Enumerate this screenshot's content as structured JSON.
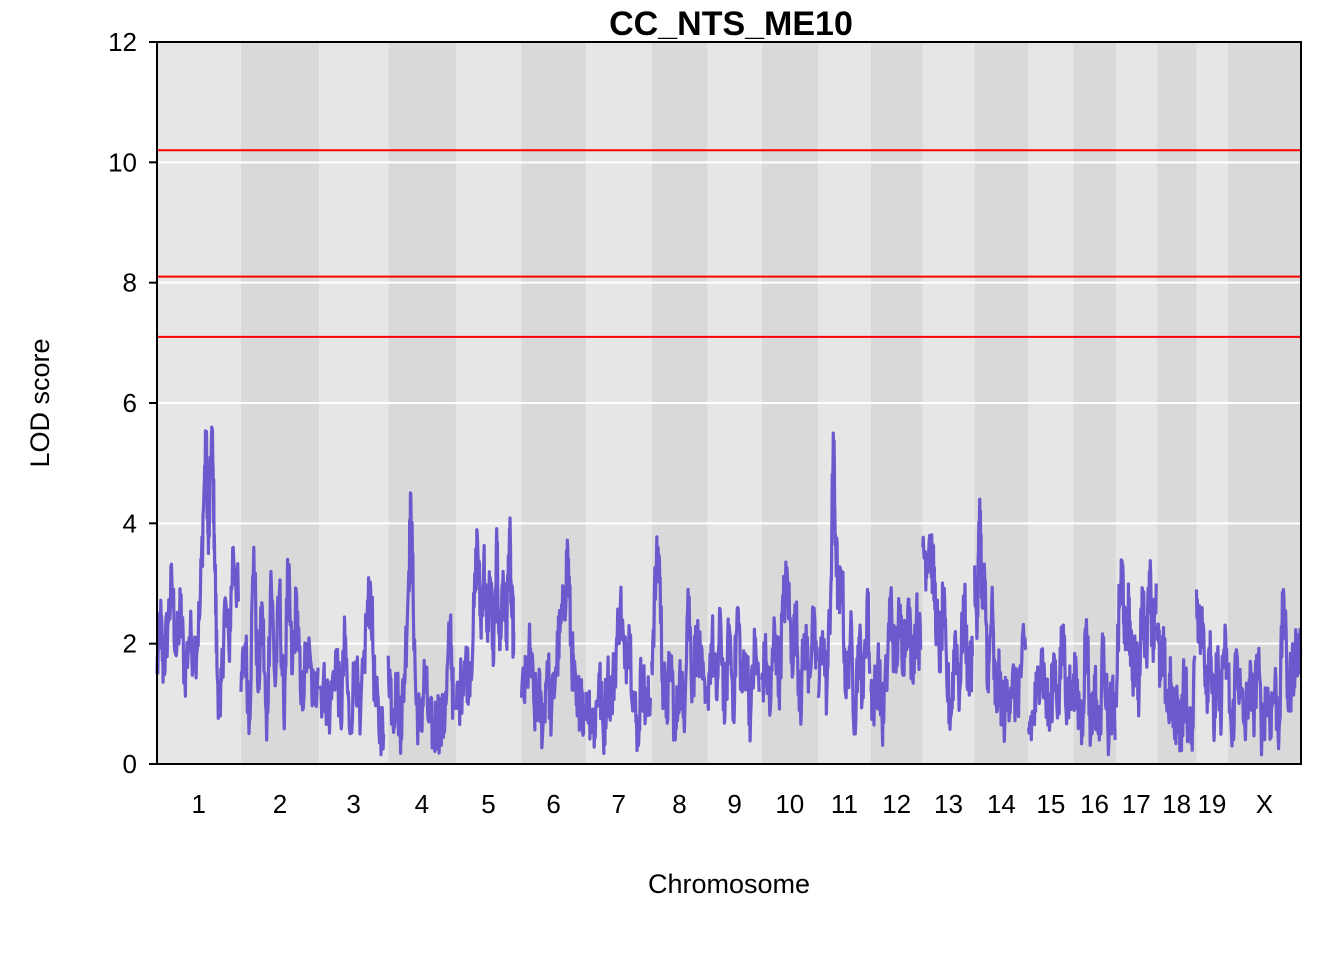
{
  "chart_data": {
    "type": "line",
    "title": "CC_NTS_ME10",
    "xlabel": "Chromosome",
    "ylabel": "LOD score",
    "ylim": [
      0,
      12
    ],
    "yticks": [
      0,
      2,
      4,
      6,
      8,
      10,
      12
    ],
    "grid": true,
    "legend": "none",
    "series_color": "#6a5acd",
    "threshold_color": "#ff0000",
    "thresholds": [
      10.2,
      8.1,
      7.1
    ],
    "chromosomes": [
      {
        "label": "1",
        "len": 195
      },
      {
        "label": "2",
        "len": 182
      },
      {
        "label": "3",
        "len": 160
      },
      {
        "label": "4",
        "len": 157
      },
      {
        "label": "5",
        "len": 152
      },
      {
        "label": "6",
        "len": 150
      },
      {
        "label": "7",
        "len": 152
      },
      {
        "label": "8",
        "len": 130
      },
      {
        "label": "9",
        "len": 125
      },
      {
        "label": "10",
        "len": 131
      },
      {
        "label": "11",
        "len": 122
      },
      {
        "label": "12",
        "len": 120
      },
      {
        "label": "13",
        "len": 120
      },
      {
        "label": "14",
        "len": 125
      },
      {
        "label": "15",
        "len": 104
      },
      {
        "label": "16",
        "len": 98
      },
      {
        "label": "17",
        "len": 95
      },
      {
        "label": "18",
        "len": 91
      },
      {
        "label": "19",
        "len": 72
      },
      {
        "label": "X",
        "len": 171
      }
    ],
    "lod_profile": [
      [
        [
          0,
          1.5
        ],
        [
          8,
          2.4
        ],
        [
          15,
          1.6
        ],
        [
          25,
          2.3
        ],
        [
          35,
          3.0
        ],
        [
          45,
          1.8
        ],
        [
          55,
          2.6
        ],
        [
          65,
          1.5
        ],
        [
          75,
          2.1
        ],
        [
          90,
          1.9
        ],
        [
          100,
          2.5
        ],
        [
          110,
          4.6
        ],
        [
          115,
          5.3
        ],
        [
          120,
          3.5
        ],
        [
          128,
          5.6
        ],
        [
          134,
          3.8
        ],
        [
          140,
          1.6
        ],
        [
          148,
          0.8
        ],
        [
          158,
          2.7
        ],
        [
          168,
          1.9
        ],
        [
          178,
          3.6
        ],
        [
          190,
          2.7
        ]
      ],
      [
        [
          0,
          1.2
        ],
        [
          10,
          2.0
        ],
        [
          20,
          0.8
        ],
        [
          30,
          3.6
        ],
        [
          40,
          1.2
        ],
        [
          50,
          2.6
        ],
        [
          60,
          0.4
        ],
        [
          70,
          3.2
        ],
        [
          80,
          1.3
        ],
        [
          90,
          2.9
        ],
        [
          100,
          0.8
        ],
        [
          110,
          3.2
        ],
        [
          120,
          1.5
        ],
        [
          130,
          2.8
        ],
        [
          140,
          1.0
        ],
        [
          155,
          1.9
        ],
        [
          170,
          1.1
        ],
        [
          180,
          1.6
        ]
      ],
      [
        [
          0,
          1.3
        ],
        [
          15,
          1.2
        ],
        [
          25,
          0.9
        ],
        [
          40,
          1.9
        ],
        [
          50,
          0.7
        ],
        [
          60,
          2.1
        ],
        [
          70,
          0.6
        ],
        [
          85,
          1.7
        ],
        [
          95,
          0.5
        ],
        [
          110,
          2.4
        ],
        [
          120,
          2.9
        ],
        [
          130,
          1.1
        ],
        [
          142,
          0.6
        ],
        [
          150,
          0.5
        ]
      ],
      [
        [
          0,
          1.8
        ],
        [
          10,
          0.9
        ],
        [
          20,
          1.2
        ],
        [
          30,
          0.6
        ],
        [
          40,
          1.8
        ],
        [
          48,
          3.2
        ],
        [
          53,
          4.3
        ],
        [
          58,
          2.8
        ],
        [
          65,
          1.0
        ],
        [
          75,
          0.6
        ],
        [
          85,
          1.5
        ],
        [
          95,
          0.7
        ],
        [
          105,
          0.5
        ],
        [
          115,
          0.8
        ],
        [
          125,
          0.6
        ],
        [
          135,
          1.0
        ],
        [
          145,
          2.4
        ],
        [
          152,
          0.9
        ]
      ],
      [
        [
          0,
          0.9
        ],
        [
          10,
          1.2
        ],
        [
          20,
          1.7
        ],
        [
          30,
          1.5
        ],
        [
          40,
          2.1
        ],
        [
          50,
          3.8
        ],
        [
          58,
          2.3
        ],
        [
          65,
          3.4
        ],
        [
          72,
          2.2
        ],
        [
          80,
          3.1
        ],
        [
          88,
          1.7
        ],
        [
          96,
          3.6
        ],
        [
          102,
          1.9
        ],
        [
          110,
          3.2
        ],
        [
          118,
          2.1
        ],
        [
          125,
          3.9
        ],
        [
          130,
          2.5
        ],
        [
          135,
          2.2
        ]
      ],
      [
        [
          0,
          1.1
        ],
        [
          10,
          1.3
        ],
        [
          20,
          1.9
        ],
        [
          30,
          0.9
        ],
        [
          40,
          1.2
        ],
        [
          50,
          0.6
        ],
        [
          60,
          1.7
        ],
        [
          70,
          0.8
        ],
        [
          80,
          1.6
        ],
        [
          90,
          2.2
        ],
        [
          100,
          2.6
        ],
        [
          108,
          3.6
        ],
        [
          115,
          2.1
        ],
        [
          122,
          1.4
        ],
        [
          130,
          0.8
        ],
        [
          140,
          1.4
        ],
        [
          145,
          0.5
        ]
      ],
      [
        [
          0,
          1.2
        ],
        [
          10,
          0.9
        ],
        [
          20,
          0.6
        ],
        [
          30,
          1.5
        ],
        [
          40,
          0.5
        ],
        [
          50,
          1.4
        ],
        [
          60,
          1.1
        ],
        [
          70,
          1.9
        ],
        [
          80,
          2.7
        ],
        [
          90,
          1.6
        ],
        [
          100,
          2.3
        ],
        [
          110,
          1.2
        ],
        [
          120,
          0.4
        ],
        [
          130,
          1.6
        ],
        [
          140,
          0.8
        ],
        [
          150,
          1.1
        ]
      ],
      [
        [
          0,
          1.7
        ],
        [
          10,
          3.2
        ],
        [
          18,
          3.4
        ],
        [
          25,
          1.5
        ],
        [
          35,
          0.9
        ],
        [
          45,
          1.8
        ],
        [
          55,
          0.4
        ],
        [
          65,
          1.5
        ],
        [
          75,
          0.8
        ],
        [
          85,
          2.9
        ],
        [
          95,
          1.3
        ],
        [
          105,
          2.1
        ],
        [
          115,
          1.5
        ],
        [
          125,
          1.0
        ]
      ],
      [
        [
          0,
          1.3
        ],
        [
          10,
          2.1
        ],
        [
          20,
          1.1
        ],
        [
          30,
          2.4
        ],
        [
          40,
          0.8
        ],
        [
          50,
          2.3
        ],
        [
          60,
          1.0
        ],
        [
          70,
          2.6
        ],
        [
          80,
          1.2
        ],
        [
          90,
          1.8
        ],
        [
          100,
          0.8
        ],
        [
          110,
          2.0
        ],
        [
          120,
          1.2
        ]
      ],
      [
        [
          0,
          1.4
        ],
        [
          10,
          1.7
        ],
        [
          20,
          0.9
        ],
        [
          30,
          2.3
        ],
        [
          40,
          1.3
        ],
        [
          50,
          2.6
        ],
        [
          60,
          3.1
        ],
        [
          70,
          1.8
        ],
        [
          80,
          2.4
        ],
        [
          90,
          1.0
        ],
        [
          100,
          2.1
        ],
        [
          110,
          1.6
        ],
        [
          120,
          2.2
        ],
        [
          128,
          1.7
        ]
      ],
      [
        [
          0,
          1.1
        ],
        [
          10,
          2.2
        ],
        [
          20,
          1.2
        ],
        [
          30,
          3.1
        ],
        [
          35,
          5.5
        ],
        [
          40,
          3.8
        ],
        [
          48,
          2.6
        ],
        [
          55,
          3.2
        ],
        [
          65,
          1.1
        ],
        [
          75,
          2.2
        ],
        [
          85,
          0.8
        ],
        [
          95,
          2.1
        ],
        [
          105,
          1.1
        ],
        [
          115,
          2.9
        ],
        [
          120,
          1.5
        ]
      ],
      [
        [
          0,
          1.2
        ],
        [
          8,
          1.1
        ],
        [
          16,
          1.7
        ],
        [
          26,
          0.7
        ],
        [
          36,
          1.4
        ],
        [
          46,
          2.8
        ],
        [
          56,
          1.6
        ],
        [
          66,
          2.4
        ],
        [
          76,
          1.9
        ],
        [
          86,
          2.6
        ],
        [
          96,
          1.7
        ],
        [
          106,
          2.4
        ],
        [
          116,
          1.9
        ]
      ],
      [
        [
          0,
          3.6
        ],
        [
          8,
          3.4
        ],
        [
          16,
          3.8
        ],
        [
          24,
          3.2
        ],
        [
          32,
          2.4
        ],
        [
          40,
          1.8
        ],
        [
          48,
          2.7
        ],
        [
          56,
          1.4
        ],
        [
          66,
          0.8
        ],
        [
          76,
          2.2
        ],
        [
          86,
          1.2
        ],
        [
          96,
          2.8
        ],
        [
          106,
          1.4
        ],
        [
          116,
          1.8
        ]
      ],
      [
        [
          0,
          3.3
        ],
        [
          6,
          2.3
        ],
        [
          12,
          4.4
        ],
        [
          18,
          2.6
        ],
        [
          24,
          3.0
        ],
        [
          32,
          1.2
        ],
        [
          40,
          2.7
        ],
        [
          48,
          1.0
        ],
        [
          58,
          1.4
        ],
        [
          68,
          0.8
        ],
        [
          78,
          1.2
        ],
        [
          88,
          1.4
        ],
        [
          98,
          1.0
        ],
        [
          110,
          1.7
        ],
        [
          120,
          1.9
        ]
      ],
      [
        [
          0,
          0.6
        ],
        [
          10,
          0.7
        ],
        [
          20,
          1.2
        ],
        [
          30,
          1.9
        ],
        [
          40,
          1.1
        ],
        [
          50,
          0.7
        ],
        [
          60,
          1.8
        ],
        [
          70,
          0.9
        ],
        [
          80,
          2.3
        ],
        [
          90,
          0.9
        ],
        [
          100,
          1.4
        ]
      ],
      [
        [
          0,
          1.5
        ],
        [
          10,
          1.0
        ],
        [
          20,
          0.7
        ],
        [
          30,
          2.4
        ],
        [
          40,
          0.5
        ],
        [
          50,
          1.3
        ],
        [
          60,
          0.4
        ],
        [
          70,
          2.1
        ],
        [
          80,
          0.6
        ],
        [
          90,
          1.1
        ],
        [
          97,
          0.4
        ]
      ],
      [
        [
          0,
          1.2
        ],
        [
          8,
          2.6
        ],
        [
          15,
          3.3
        ],
        [
          22,
          1.9
        ],
        [
          30,
          2.6
        ],
        [
          38,
          1.4
        ],
        [
          46,
          2.0
        ],
        [
          54,
          1.2
        ],
        [
          62,
          2.9
        ],
        [
          70,
          1.8
        ],
        [
          78,
          3.2
        ],
        [
          86,
          2.1
        ],
        [
          94,
          3.0
        ]
      ],
      [
        [
          0,
          2.3
        ],
        [
          8,
          1.4
        ],
        [
          16,
          1.8
        ],
        [
          24,
          0.9
        ],
        [
          32,
          1.3
        ],
        [
          40,
          0.6
        ],
        [
          48,
          1.1
        ],
        [
          56,
          0.5
        ],
        [
          64,
          1.5
        ],
        [
          72,
          0.7
        ],
        [
          80,
          0.4
        ],
        [
          88,
          1.8
        ]
      ],
      [
        [
          0,
          2.9
        ],
        [
          8,
          2.1
        ],
        [
          16,
          2.3
        ],
        [
          24,
          1.2
        ],
        [
          32,
          2.2
        ],
        [
          40,
          0.6
        ],
        [
          48,
          1.6
        ],
        [
          56,
          0.9
        ],
        [
          64,
          1.9
        ],
        [
          71,
          1.7
        ]
      ],
      [
        [
          0,
          1.6
        ],
        [
          10,
          0.3
        ],
        [
          20,
          1.9
        ],
        [
          30,
          1.1
        ],
        [
          40,
          0.6
        ],
        [
          50,
          1.4
        ],
        [
          60,
          0.9
        ],
        [
          70,
          1.7
        ],
        [
          80,
          0.5
        ],
        [
          90,
          1.2
        ],
        [
          100,
          0.8
        ],
        [
          110,
          1.3
        ],
        [
          120,
          0.6
        ],
        [
          130,
          2.9
        ],
        [
          140,
          1.1
        ],
        [
          150,
          1.5
        ],
        [
          160,
          1.9
        ],
        [
          170,
          1.8
        ]
      ]
    ]
  }
}
